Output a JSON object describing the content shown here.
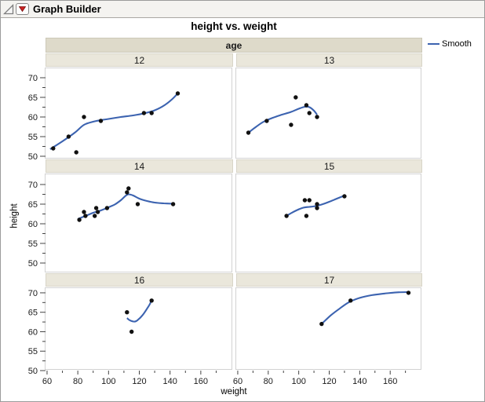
{
  "window": {
    "title": "Graph Builder"
  },
  "icons": {
    "disclosure": "open-triangle-icon",
    "menu": "red-triangle-icon"
  },
  "colors": {
    "window_border": "#9b9b9b",
    "header_bg": "#f4f3f0",
    "facet_header_bg": "#dedaca",
    "facet_label_bg": "#eae7db",
    "panel_border": "#d2d2d2",
    "smooth_line": "#3c63b0",
    "point": "#111111",
    "tick": "#444444",
    "red_triangle": "#cc2222"
  },
  "chart_data": {
    "type": "scatter",
    "title": "height vs. weight",
    "xlabel": "weight",
    "ylabel": "height",
    "facet": {
      "variable": "age",
      "header_label": "age",
      "levels": [
        "12",
        "13",
        "14",
        "15",
        "16",
        "17"
      ]
    },
    "x_ticks": [
      60,
      80,
      100,
      120,
      140,
      160
    ],
    "x_minor_ticks": [
      70,
      90,
      110,
      130,
      150,
      170
    ],
    "y_ticks": [
      50,
      55,
      60,
      65,
      70
    ],
    "y_minor_ticks": [
      52.5,
      57.5,
      62.5,
      67.5
    ],
    "x_range": [
      59,
      181
    ],
    "y_range": [
      47.5,
      72.5
    ],
    "grid": false,
    "legend": {
      "position": "right-top",
      "entries": [
        {
          "label": "Smooth",
          "type": "line",
          "color": "#3c63b0"
        }
      ]
    },
    "panels": [
      {
        "facet": "12",
        "points": [
          [
            64,
            52
          ],
          [
            74,
            55
          ],
          [
            79,
            51
          ],
          [
            84,
            60
          ],
          [
            95,
            59
          ],
          [
            123,
            61
          ],
          [
            128,
            61
          ],
          [
            145,
            66
          ]
        ],
        "smooth": [
          [
            62,
            51.8
          ],
          [
            70,
            53.8
          ],
          [
            78,
            56.0
          ],
          [
            84,
            58.0
          ],
          [
            90,
            58.8
          ],
          [
            95,
            59.2
          ],
          [
            100,
            59.5
          ],
          [
            108,
            60.0
          ],
          [
            116,
            60.4
          ],
          [
            124,
            61.0
          ],
          [
            130,
            61.7
          ],
          [
            136,
            62.9
          ],
          [
            141,
            64.4
          ],
          [
            145,
            66.0
          ]
        ]
      },
      {
        "facet": "13",
        "points": [
          [
            67,
            56
          ],
          [
            79,
            59
          ],
          [
            95,
            58
          ],
          [
            98,
            65
          ],
          [
            105,
            63
          ],
          [
            107,
            61
          ],
          [
            112,
            60
          ]
        ],
        "smooth": [
          [
            67,
            56.0
          ],
          [
            72,
            57.5
          ],
          [
            77,
            58.8
          ],
          [
            83,
            59.8
          ],
          [
            89,
            60.6
          ],
          [
            95,
            61.3
          ],
          [
            100,
            62.1
          ],
          [
            104,
            62.6
          ],
          [
            107,
            62.5
          ],
          [
            110,
            61.6
          ],
          [
            112,
            60.6
          ]
        ]
      },
      {
        "facet": "14",
        "points": [
          [
            81,
            61
          ],
          [
            84,
            63
          ],
          [
            85,
            62
          ],
          [
            91,
            62
          ],
          [
            92,
            64
          ],
          [
            93,
            63
          ],
          [
            99,
            64
          ],
          [
            112,
            68
          ],
          [
            113,
            69
          ],
          [
            119,
            65
          ],
          [
            142,
            65
          ]
        ],
        "smooth": [
          [
            80,
            61.2
          ],
          [
            85,
            62.0
          ],
          [
            90,
            62.8
          ],
          [
            95,
            63.4
          ],
          [
            100,
            64.2
          ],
          [
            104,
            64.9
          ],
          [
            108,
            66.0
          ],
          [
            111,
            67.1
          ],
          [
            113,
            67.5
          ],
          [
            116,
            67.2
          ],
          [
            120,
            66.4
          ],
          [
            125,
            65.8
          ],
          [
            130,
            65.4
          ],
          [
            136,
            65.2
          ],
          [
            142,
            65.1
          ]
        ]
      },
      {
        "facet": "15",
        "points": [
          [
            92,
            62
          ],
          [
            105,
            62
          ],
          [
            104,
            66
          ],
          [
            107,
            66
          ],
          [
            112,
            64
          ],
          [
            112,
            65
          ],
          [
            130,
            67
          ]
        ],
        "smooth": [
          [
            92,
            62.0
          ],
          [
            95,
            62.7
          ],
          [
            99,
            63.5
          ],
          [
            103,
            64.1
          ],
          [
            107,
            64.3
          ],
          [
            111,
            64.5
          ],
          [
            115,
            64.9
          ],
          [
            120,
            65.6
          ],
          [
            125,
            66.4
          ],
          [
            130,
            67.2
          ]
        ]
      },
      {
        "facet": "16",
        "points": [
          [
            112,
            65
          ],
          [
            115,
            60
          ],
          [
            128,
            68
          ]
        ],
        "smooth": [
          [
            112,
            63.5
          ],
          [
            114,
            62.9
          ],
          [
            117,
            62.6
          ],
          [
            119,
            63.0
          ],
          [
            122,
            64.2
          ],
          [
            125,
            65.9
          ],
          [
            127,
            67.2
          ],
          [
            128,
            68.3
          ]
        ]
      },
      {
        "facet": "17",
        "points": [
          [
            115,
            62
          ],
          [
            134,
            68
          ],
          [
            172,
            70
          ]
        ],
        "smooth": [
          [
            115,
            62.0
          ],
          [
            121,
            64.2
          ],
          [
            127,
            66.0
          ],
          [
            133,
            67.6
          ],
          [
            140,
            68.7
          ],
          [
            148,
            69.4
          ],
          [
            156,
            69.8
          ],
          [
            164,
            70.1
          ],
          [
            172,
            70.2
          ]
        ]
      }
    ]
  }
}
